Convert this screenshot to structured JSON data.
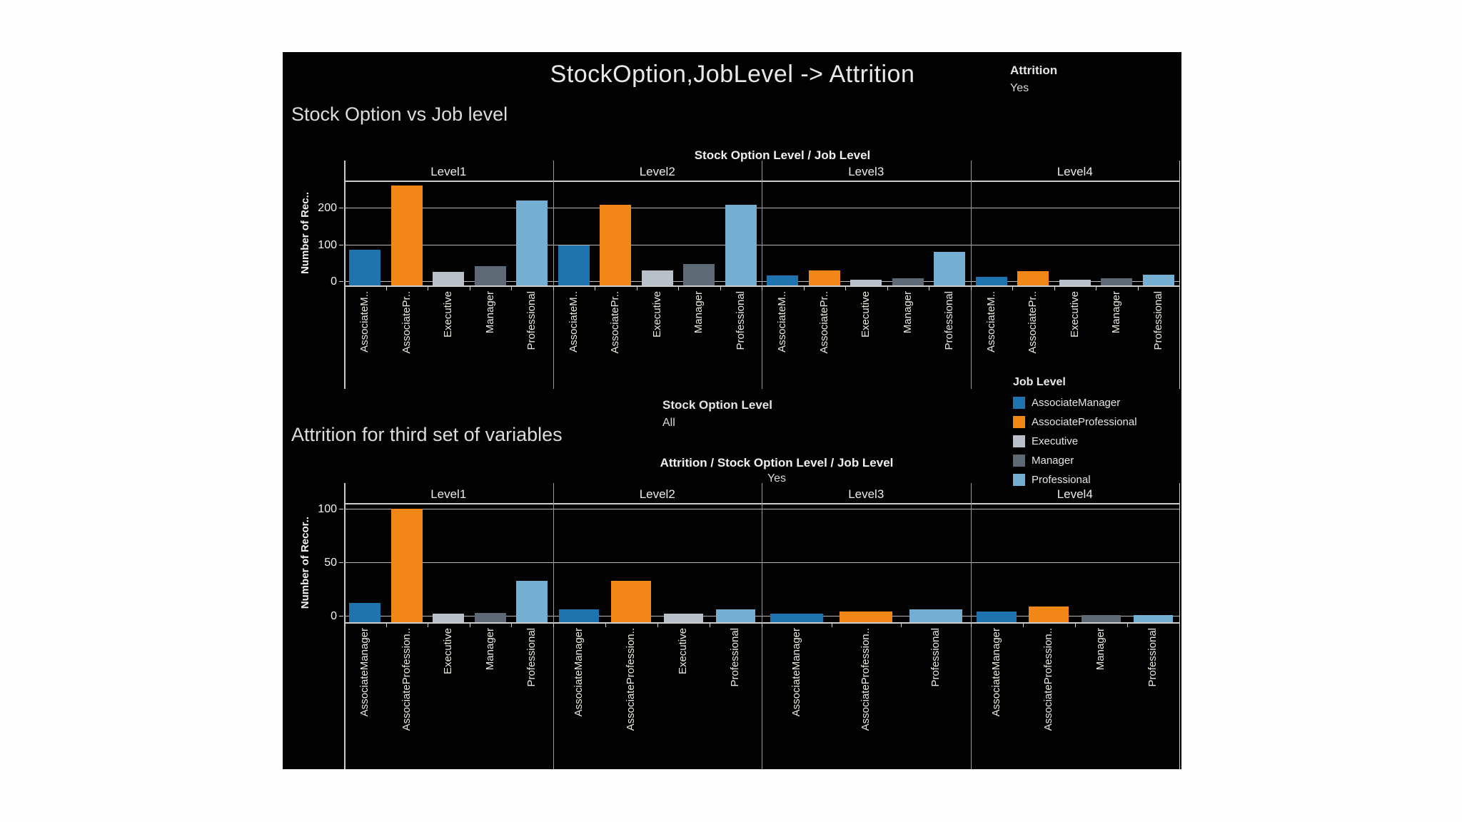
{
  "header": {
    "title": "StockOption,JobLevel -> Attrition",
    "filter_title": "Attrition",
    "filter_value": "Yes"
  },
  "mid_filter": {
    "label": "Stock Option Level",
    "value": "All"
  },
  "legend": {
    "title": "Job Level",
    "items": [
      {
        "label": "AssociateManager",
        "color": "#1f73ae"
      },
      {
        "label": "AssociateProfessional",
        "color": "#f28718"
      },
      {
        "label": "Executive",
        "color": "#b9c0ca"
      },
      {
        "label": "Manager",
        "color": "#5d6974"
      },
      {
        "label": "Professional",
        "color": "#74afd3"
      }
    ]
  },
  "colors": {
    "panel_bg": "#020202",
    "page_bg": "#fefefe",
    "series": {
      "AssociateManager": "#1f73ae",
      "AssociateProfessional": "#f28718",
      "Executive": "#b9c0ca",
      "Manager": "#5d6974",
      "Professional": "#74afd3"
    }
  },
  "chart_data": [
    {
      "type": "bar",
      "title": "Stock Option vs Job level",
      "col_header": "Stock Option Level / Job Level",
      "ylabel": "Number of Rec..",
      "yticks": [
        0,
        100,
        200
      ],
      "ylim": [
        0,
        283
      ],
      "grid": true,
      "panels": [
        {
          "label": "Level1",
          "bars": [
            {
              "category": "AssociateM..",
              "series": "AssociateManager",
              "value": 85
            },
            {
              "category": "AssociatePr..",
              "series": "AssociateProfessional",
              "value": 261
            },
            {
              "category": "Executive",
              "series": "Executive",
              "value": 25
            },
            {
              "category": "Manager",
              "series": "Manager",
              "value": 40
            },
            {
              "category": "Professional",
              "series": "Professional",
              "value": 220
            }
          ]
        },
        {
          "label": "Level2",
          "bars": [
            {
              "category": "AssociateM..",
              "series": "AssociateManager",
              "value": 97
            },
            {
              "category": "AssociatePr..",
              "series": "AssociateProfessional",
              "value": 207
            },
            {
              "category": "Executive",
              "series": "Executive",
              "value": 30
            },
            {
              "category": "Manager",
              "series": "Manager",
              "value": 47
            },
            {
              "category": "Professional",
              "series": "Professional",
              "value": 207
            }
          ]
        },
        {
          "label": "Level3",
          "bars": [
            {
              "category": "AssociateM..",
              "series": "AssociateManager",
              "value": 15
            },
            {
              "category": "AssociatePr..",
              "series": "AssociateProfessional",
              "value": 30
            },
            {
              "category": "Executive",
              "series": "Executive",
              "value": 4
            },
            {
              "category": "Manager",
              "series": "Manager",
              "value": 8
            },
            {
              "category": "Professional",
              "series": "Professional",
              "value": 80
            }
          ]
        },
        {
          "label": "Level4",
          "bars": [
            {
              "category": "AssociateM..",
              "series": "AssociateManager",
              "value": 12
            },
            {
              "category": "AssociatePr..",
              "series": "AssociateProfessional",
              "value": 28
            },
            {
              "category": "Executive",
              "series": "Executive",
              "value": 3
            },
            {
              "category": "Manager",
              "series": "Manager",
              "value": 8
            },
            {
              "category": "Professional",
              "series": "Professional",
              "value": 17
            }
          ]
        }
      ]
    },
    {
      "type": "bar",
      "title": "Attrition for third set of variables",
      "col_header": "Attrition / Stock Option Level / Job Level",
      "sub_header": "Yes",
      "ylabel": "Number of Recor..",
      "yticks": [
        0,
        50,
        100
      ],
      "ylim": [
        0,
        110
      ],
      "grid": true,
      "panels": [
        {
          "label": "Level1",
          "bars": [
            {
              "category": "AssociateManager",
              "series": "AssociateManager",
              "value": 12
            },
            {
              "category": "AssociateProfession..",
              "series": "AssociateProfessional",
              "value": 100
            },
            {
              "category": "Executive",
              "series": "Executive",
              "value": 2
            },
            {
              "category": "Manager",
              "series": "Manager",
              "value": 3
            },
            {
              "category": "Professional",
              "series": "Professional",
              "value": 33
            }
          ]
        },
        {
          "label": "Level2",
          "bars": [
            {
              "category": "AssociateManager",
              "series": "AssociateManager",
              "value": 6
            },
            {
              "category": "AssociateProfession..",
              "series": "AssociateProfessional",
              "value": 33
            },
            {
              "category": "Executive",
              "series": "Executive",
              "value": 2
            },
            {
              "category": "Professional",
              "series": "Professional",
              "value": 6
            }
          ]
        },
        {
          "label": "Level3",
          "bars": [
            {
              "category": "AssociateManager",
              "series": "AssociateManager",
              "value": 2
            },
            {
              "category": "AssociateProfession..",
              "series": "AssociateProfessional",
              "value": 4
            },
            {
              "category": "Professional",
              "series": "Professional",
              "value": 6
            }
          ]
        },
        {
          "label": "Level4",
          "bars": [
            {
              "category": "AssociateManager",
              "series": "AssociateManager",
              "value": 4
            },
            {
              "category": "AssociateProfession..",
              "series": "AssociateProfessional",
              "value": 9
            },
            {
              "category": "Manager",
              "series": "Manager",
              "value": 1
            },
            {
              "category": "Professional",
              "series": "Professional",
              "value": 1
            }
          ]
        }
      ]
    }
  ]
}
